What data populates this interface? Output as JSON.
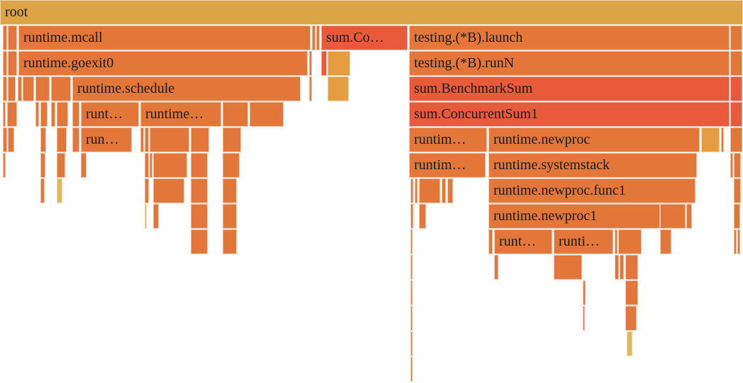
{
  "colors": {
    "root": "#dba446",
    "orange": "#e3773a",
    "light_orange": "#e59d3f",
    "red": "#e85a3a",
    "yellow": "#e3b65a"
  },
  "frames": {
    "root": "root",
    "runtime_mcall": "runtime.mcall",
    "sum_co": "sum.Co…",
    "testing_launch": "testing.(*B).launch",
    "runtime_goexit0": "runtime.goexit0",
    "testing_runN": "testing.(*B).runN",
    "runtime_schedule": "runtime.schedule",
    "sum_benchmark": "sum.BenchmarkSum",
    "runt_a": "runt…",
    "runtime_b": "runtime…",
    "sum_concurrent": "sum.ConcurrentSum1",
    "run_c": "run…",
    "runtim_d": "runtim…",
    "runtime_newproc": "runtime.newproc",
    "runtim_e": "runtim…",
    "runtime_systemstack": "runtime.systemstack",
    "runtime_newproc_func1": "runtime.newproc.func1",
    "runtime_newproc1": "runtime.newproc1",
    "runt_f": "runt…",
    "runti_g": "runti…"
  }
}
